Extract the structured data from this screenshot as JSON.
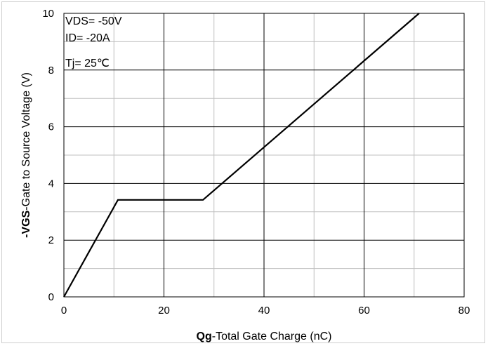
{
  "chart_data": {
    "type": "line",
    "xlabel_bold": "Qg",
    "xlabel_rest": "-Total Gate Charge (nC)",
    "ylabel_bold": "-VGS",
    "ylabel_rest": "-Gate to Source Voltage (V)",
    "xlim": [
      0,
      80
    ],
    "ylim": [
      0,
      10
    ],
    "x_ticks": [
      0,
      20,
      40,
      60,
      80
    ],
    "y_ticks": [
      0,
      2,
      4,
      6,
      8,
      10
    ],
    "grid": true,
    "annotations": [
      "VDS= -50V",
      "ID= -20A",
      "Tj= 25℃"
    ],
    "series": [
      {
        "x": [
          0,
          10.8,
          27.8,
          71.0
        ],
        "y": [
          0,
          3.42,
          3.42,
          10
        ]
      }
    ]
  }
}
